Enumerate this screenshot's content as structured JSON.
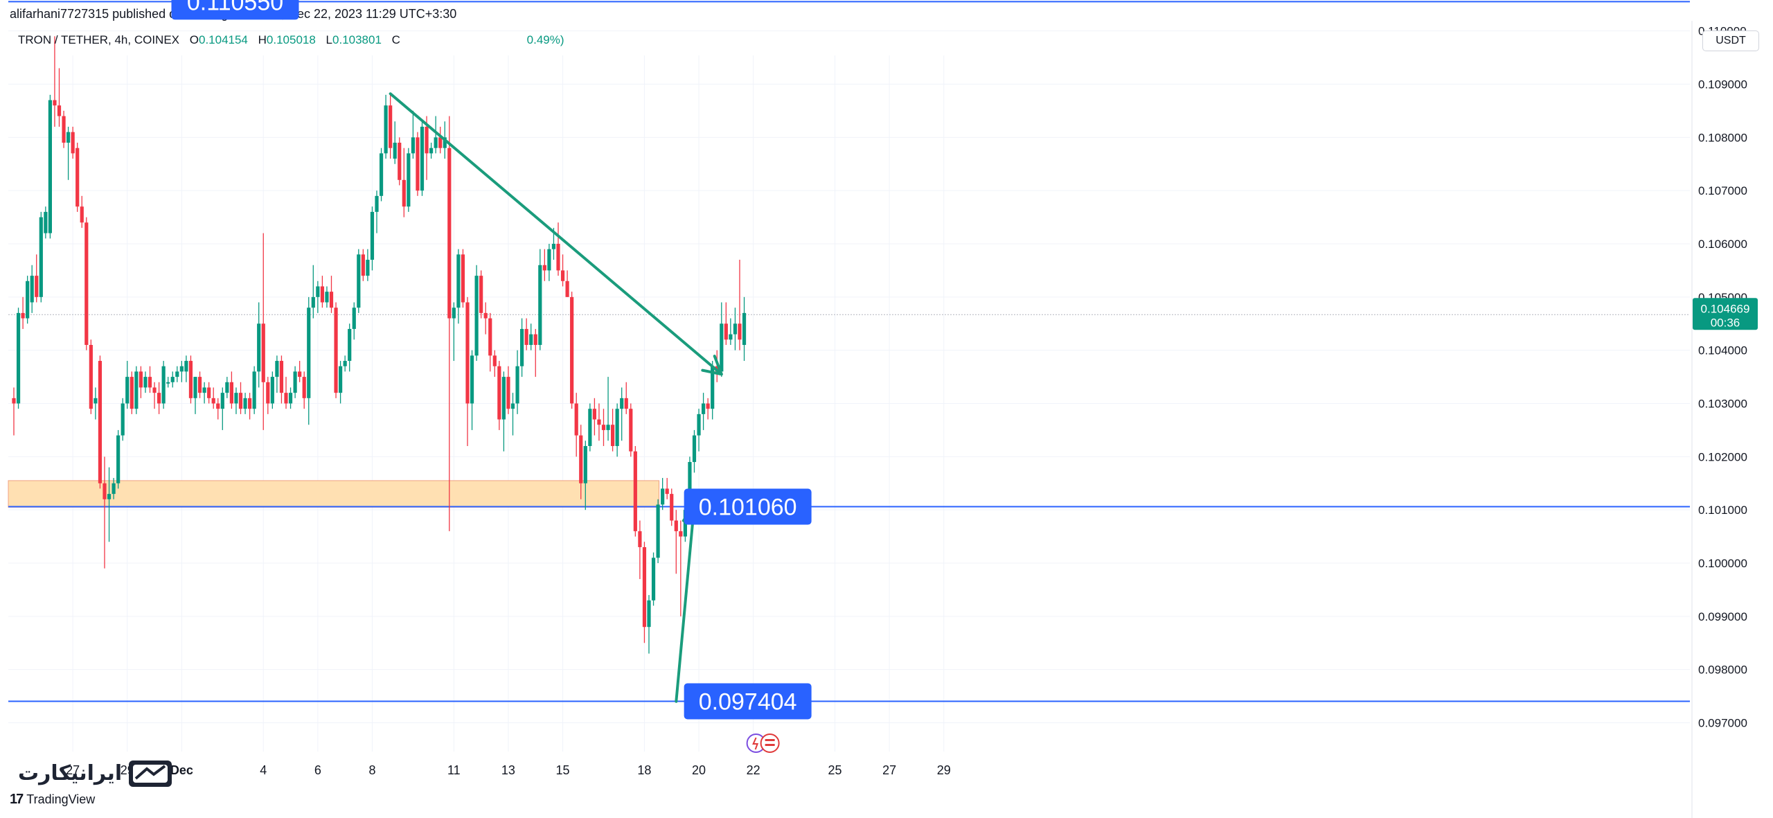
{
  "header": {
    "published_by": "alifarhani7727315 published on TradingView.com, Dec 22, 2023 11:29 UTC+3:30"
  },
  "legend": {
    "symbol": "TRON / TETHER, 4h, COINEX",
    "o_label": "O",
    "o_value": "0.104154",
    "h_label": "H",
    "h_value": "0.105018",
    "l_label": "L",
    "l_value": "0.103801",
    "c_label": "C",
    "change_visible": "0.49%)"
  },
  "currency_button": "USDT",
  "price_label": {
    "value": "0.104669",
    "countdown": "00:36"
  },
  "footer": {
    "brand": "TradingView",
    "watermark": "ایرانیکارت"
  },
  "colors": {
    "up": "#089981",
    "down": "#f23645",
    "trend": "#1a9c7c",
    "hline": "#2962ff",
    "callout": "#2962ff",
    "zone_fill": "#ffe0b2",
    "zone_border": "#f0a080",
    "grid": "#f0f3fa"
  },
  "chart_data": {
    "type": "candlestick",
    "timeframe": "4h",
    "ylim": [
      0.0965,
      0.1112
    ],
    "y_ticks": [
      "0.110000",
      "0.109000",
      "0.108000",
      "0.107000",
      "0.106000",
      "0.105000",
      "0.104000",
      "0.103000",
      "0.102000",
      "0.101000",
      "0.100000",
      "0.099000",
      "0.098000",
      "0.097000"
    ],
    "x_ticks": [
      {
        "label": "27",
        "i": 13
      },
      {
        "label": "29",
        "i": 25
      },
      {
        "label": "Dec",
        "i": 37
      },
      {
        "label": "4",
        "i": 55
      },
      {
        "label": "6",
        "i": 67
      },
      {
        "label": "8",
        "i": 79
      },
      {
        "label": "11",
        "i": 97
      },
      {
        "label": "13",
        "i": 109
      },
      {
        "label": "15",
        "i": 121
      },
      {
        "label": "18",
        "i": 139
      },
      {
        "label": "20",
        "i": 151
      },
      {
        "label": "22",
        "i": 163
      },
      {
        "label": "25",
        "i": 181
      },
      {
        "label": "27",
        "i": 193
      },
      {
        "label": "29",
        "i": 205
      }
    ],
    "candles": [
      [
        0.1031,
        0.1033,
        0.1024,
        0.103
      ],
      [
        0.103,
        0.1048,
        0.1029,
        0.1047
      ],
      [
        0.1047,
        0.105,
        0.1044,
        0.1046
      ],
      [
        0.1046,
        0.1054,
        0.1045,
        0.1053
      ],
      [
        0.1049,
        0.1056,
        0.1047,
        0.1054
      ],
      [
        0.1054,
        0.1058,
        0.1049,
        0.105
      ],
      [
        0.105,
        0.1066,
        0.1049,
        0.1065
      ],
      [
        0.1062,
        0.1067,
        0.1061,
        0.1066
      ],
      [
        0.1062,
        0.1088,
        0.1061,
        0.1087
      ],
      [
        0.1087,
        0.1099,
        0.1082,
        0.1086
      ],
      [
        0.1086,
        0.1093,
        0.1082,
        0.1084
      ],
      [
        0.1084,
        0.1085,
        0.1078,
        0.1079
      ],
      [
        0.1079,
        0.1082,
        0.1072,
        0.1081
      ],
      [
        0.1081,
        0.1082,
        0.1076,
        0.1077
      ],
      [
        0.1078,
        0.1079,
        0.1066,
        0.1067
      ],
      [
        0.1067,
        0.1069,
        0.1063,
        0.1064
      ],
      [
        0.1064,
        0.1065,
        0.104,
        0.1041
      ],
      [
        0.1041,
        0.1042,
        0.1028,
        0.1029
      ],
      [
        0.103,
        0.1033,
        0.1027,
        0.1031
      ],
      [
        0.1038,
        0.1039,
        0.1014,
        0.1015
      ],
      [
        0.1015,
        0.102,
        0.0999,
        0.1012
      ],
      [
        0.1012,
        0.1018,
        0.1004,
        0.1013
      ],
      [
        0.1013,
        0.1016,
        0.1012,
        0.1015
      ],
      [
        0.1015,
        0.1025,
        0.1014,
        0.1024
      ],
      [
        0.1024,
        0.1031,
        0.1023,
        0.103
      ],
      [
        0.103,
        0.1038,
        0.1029,
        0.1035
      ],
      [
        0.1035,
        0.1036,
        0.1028,
        0.1029
      ],
      [
        0.1029,
        0.1037,
        0.1028,
        0.1036
      ],
      [
        0.1036,
        0.1037,
        0.1031,
        0.1033
      ],
      [
        0.1033,
        0.1036,
        0.1032,
        0.1035
      ],
      [
        0.1035,
        0.1037,
        0.1032,
        0.1033
      ],
      [
        0.1033,
        0.1034,
        0.1029,
        0.1032
      ],
      [
        0.1032,
        0.1034,
        0.1028,
        0.103
      ],
      [
        0.103,
        0.1038,
        0.1029,
        0.1037
      ],
      [
        0.1034,
        0.1035,
        0.1033,
        0.1034
      ],
      [
        0.1034,
        0.1036,
        0.1033,
        0.1035
      ],
      [
        0.1035,
        0.1037,
        0.1034,
        0.1036
      ],
      [
        0.1036,
        0.1038,
        0.1034,
        0.1037
      ],
      [
        0.1036,
        0.1039,
        0.1034,
        0.1038
      ],
      [
        0.1038,
        0.1039,
        0.103,
        0.1031
      ],
      [
        0.1031,
        0.1035,
        0.1028,
        0.1035
      ],
      [
        0.1035,
        0.1036,
        0.1031,
        0.1032
      ],
      [
        0.1032,
        0.1034,
        0.103,
        0.1033
      ],
      [
        0.1033,
        0.1034,
        0.103,
        0.1031
      ],
      [
        0.1031,
        0.1033,
        0.1029,
        0.103
      ],
      [
        0.103,
        0.1031,
        0.1027,
        0.1029
      ],
      [
        0.1029,
        0.1033,
        0.1025,
        0.1032
      ],
      [
        0.1032,
        0.1035,
        0.1031,
        0.1034
      ],
      [
        0.1034,
        0.1036,
        0.1029,
        0.103
      ],
      [
        0.103,
        0.1033,
        0.1028,
        0.1032
      ],
      [
        0.1032,
        0.1034,
        0.1028,
        0.1029
      ],
      [
        0.1029,
        0.1032,
        0.1028,
        0.1031
      ],
      [
        0.1031,
        0.1032,
        0.1027,
        0.1029
      ],
      [
        0.1029,
        0.1037,
        0.1028,
        0.1036
      ],
      [
        0.1036,
        0.1049,
        0.1033,
        0.1045
      ],
      [
        0.1045,
        0.1062,
        0.1025,
        0.1034
      ],
      [
        0.1034,
        0.1035,
        0.1028,
        0.103
      ],
      [
        0.103,
        0.1036,
        0.1029,
        0.1035
      ],
      [
        0.1035,
        0.1039,
        0.1032,
        0.1038
      ],
      [
        0.1038,
        0.1039,
        0.103,
        0.1032
      ],
      [
        0.1032,
        0.1035,
        0.1029,
        0.103
      ],
      [
        0.103,
        0.1033,
        0.1029,
        0.1032
      ],
      [
        0.1032,
        0.1037,
        0.1031,
        0.1036
      ],
      [
        0.1036,
        0.1038,
        0.1034,
        0.1035
      ],
      [
        0.1035,
        0.1036,
        0.1029,
        0.1031
      ],
      [
        0.1031,
        0.105,
        0.1026,
        0.1048
      ],
      [
        0.1048,
        0.1056,
        0.1046,
        0.105
      ],
      [
        0.105,
        0.1053,
        0.1047,
        0.1052
      ],
      [
        0.1052,
        0.1054,
        0.1048,
        0.1049
      ],
      [
        0.1049,
        0.1052,
        0.1048,
        0.1051
      ],
      [
        0.1051,
        0.1054,
        0.1047,
        0.1048
      ],
      [
        0.1048,
        0.1049,
        0.1031,
        0.1032
      ],
      [
        0.1032,
        0.1038,
        0.103,
        0.1037
      ],
      [
        0.1037,
        0.1039,
        0.1036,
        0.1038
      ],
      [
        0.1038,
        0.1045,
        0.1036,
        0.1044
      ],
      [
        0.1044,
        0.1049,
        0.1042,
        0.1048
      ],
      [
        0.1048,
        0.1059,
        0.1047,
        0.1058
      ],
      [
        0.1058,
        0.1059,
        0.1053,
        0.1054
      ],
      [
        0.1054,
        0.1059,
        0.1053,
        0.1057
      ],
      [
        0.1057,
        0.1067,
        0.1055,
        0.1066
      ],
      [
        0.1066,
        0.107,
        0.1062,
        0.1069
      ],
      [
        0.1069,
        0.1078,
        0.1068,
        0.1077
      ],
      [
        0.1077,
        0.1088,
        0.1076,
        0.1086
      ],
      [
        0.1086,
        0.1088,
        0.1076,
        0.1078
      ],
      [
        0.1076,
        0.1083,
        0.1075,
        0.1079
      ],
      [
        0.1079,
        0.108,
        0.1071,
        0.1072
      ],
      [
        0.1072,
        0.1078,
        0.1065,
        0.1067
      ],
      [
        0.1067,
        0.1078,
        0.1066,
        0.1077
      ],
      [
        0.1077,
        0.1085,
        0.1076,
        0.108
      ],
      [
        0.108,
        0.1081,
        0.1069,
        0.107
      ],
      [
        0.107,
        0.1083,
        0.1069,
        0.1082
      ],
      [
        0.1082,
        0.1084,
        0.1072,
        0.1077
      ],
      [
        0.1077,
        0.1079,
        0.1076,
        0.1078
      ],
      [
        0.1078,
        0.1084,
        0.1077,
        0.108
      ],
      [
        0.108,
        0.1082,
        0.1077,
        0.1078
      ],
      [
        0.1078,
        0.1083,
        0.1076,
        0.108
      ],
      [
        0.1078,
        0.1084,
        0.1006,
        0.1046
      ],
      [
        0.1046,
        0.1049,
        0.1038,
        0.1048
      ],
      [
        0.1048,
        0.1059,
        0.1045,
        0.1058
      ],
      [
        0.1058,
        0.1059,
        0.1048,
        0.1049
      ],
      [
        0.1049,
        0.105,
        0.1022,
        0.103
      ],
      [
        0.103,
        0.104,
        0.1025,
        0.1039
      ],
      [
        0.1039,
        0.1056,
        0.1038,
        0.1054
      ],
      [
        0.1054,
        0.1055,
        0.1046,
        0.1047
      ],
      [
        0.1047,
        0.1049,
        0.1043,
        0.1046
      ],
      [
        0.1046,
        0.1047,
        0.1036,
        0.1039
      ],
      [
        0.1039,
        0.104,
        0.1035,
        0.1037
      ],
      [
        0.1037,
        0.1038,
        0.1025,
        0.1027
      ],
      [
        0.1027,
        0.1036,
        0.1021,
        0.1035
      ],
      [
        0.1035,
        0.1037,
        0.1028,
        0.1029
      ],
      [
        0.1029,
        0.1032,
        0.1024,
        0.103
      ],
      [
        0.103,
        0.104,
        0.1028,
        0.1037
      ],
      [
        0.1037,
        0.1046,
        0.1035,
        0.1044
      ],
      [
        0.1044,
        0.1046,
        0.104,
        0.1041
      ],
      [
        0.1041,
        0.1045,
        0.104,
        0.1043
      ],
      [
        0.1043,
        0.1044,
        0.1035,
        0.1041
      ],
      [
        0.1041,
        0.1059,
        0.104,
        0.1056
      ],
      [
        0.1056,
        0.1059,
        0.1053,
        0.1055
      ],
      [
        0.1055,
        0.106,
        0.1053,
        0.1059
      ],
      [
        0.1059,
        0.1063,
        0.1057,
        0.106
      ],
      [
        0.106,
        0.1064,
        0.1054,
        0.1055
      ],
      [
        0.1055,
        0.1058,
        0.1052,
        0.1053
      ],
      [
        0.1053,
        0.1055,
        0.105,
        0.105
      ],
      [
        0.105,
        0.1051,
        0.1029,
        0.103
      ],
      [
        0.103,
        0.1032,
        0.102,
        0.1024
      ],
      [
        0.1024,
        0.1026,
        0.1012,
        0.1015
      ],
      [
        0.1015,
        0.1023,
        0.101,
        0.1022
      ],
      [
        0.1022,
        0.103,
        0.1021,
        0.1029
      ],
      [
        0.1029,
        0.1031,
        0.1024,
        0.1027
      ],
      [
        0.1027,
        0.103,
        0.1023,
        0.1026
      ],
      [
        0.1026,
        0.1029,
        0.1022,
        0.1025
      ],
      [
        0.1025,
        0.1035,
        0.1023,
        0.1026
      ],
      [
        0.1026,
        0.1029,
        0.1021,
        0.1022
      ],
      [
        0.1022,
        0.103,
        0.102,
        0.1029
      ],
      [
        0.1029,
        0.1033,
        0.1023,
        0.1031
      ],
      [
        0.1031,
        0.1034,
        0.1028,
        0.1029
      ],
      [
        0.1029,
        0.103,
        0.102,
        0.1021
      ],
      [
        0.1021,
        0.1022,
        0.1005,
        0.1006
      ],
      [
        0.1006,
        0.1008,
        0.0997,
        0.1003
      ],
      [
        0.1003,
        0.1004,
        0.0985,
        0.0988
      ],
      [
        0.0988,
        0.0994,
        0.0983,
        0.0993
      ],
      [
        0.0993,
        0.1002,
        0.0992,
        0.1001
      ],
      [
        0.1001,
        0.1012,
        0.1,
        0.1011
      ],
      [
        0.1011,
        0.1016,
        0.101,
        0.1014
      ],
      [
        0.1014,
        0.1016,
        0.1012,
        0.1013
      ],
      [
        0.1013,
        0.1014,
        0.1007,
        0.1008
      ],
      [
        0.1008,
        0.101,
        0.0998,
        0.1006
      ],
      [
        0.1006,
        0.1008,
        0.099,
        0.1005
      ],
      [
        0.1005,
        0.1012,
        0.1004,
        0.101
      ],
      [
        0.101,
        0.102,
        0.1009,
        0.1019
      ],
      [
        0.1019,
        0.1025,
        0.1017,
        0.1024
      ],
      [
        0.1024,
        0.1029,
        0.1021,
        0.1028
      ],
      [
        0.1028,
        0.1032,
        0.1025,
        0.103
      ],
      [
        0.103,
        0.1031,
        0.1027,
        0.1029
      ],
      [
        0.1029,
        0.1038,
        0.1027,
        0.1037
      ],
      [
        0.1037,
        0.104,
        0.1034,
        0.1036
      ],
      [
        0.1036,
        0.1049,
        0.1035,
        0.1045
      ],
      [
        0.1045,
        0.1049,
        0.1041,
        0.1042
      ],
      [
        0.1042,
        0.1046,
        0.1041,
        0.1043
      ],
      [
        0.1043,
        0.1048,
        0.104,
        0.1045
      ],
      [
        0.1045,
        0.1057,
        0.104,
        0.1042
      ],
      [
        0.1041,
        0.105,
        0.1038,
        0.1047
      ]
    ],
    "support_zone": {
      "from": 0.10105,
      "to": 0.10155,
      "start_i": 0,
      "end_i": 141
    },
    "horizontal_lines": [
      {
        "value": 0.11055,
        "label": "0.110550",
        "label_i": 50
      },
      {
        "value": 0.10106,
        "label": "0.101060",
        "label_i": 163
      },
      {
        "value": 0.097404,
        "label": "0.097404",
        "label_i": 163
      }
    ],
    "trendlines": [
      {
        "from": [
          83,
          0.10882
        ],
        "to": [
          156,
          0.10355
        ],
        "arrow": true
      },
      {
        "from": [
          146,
          0.0974
        ],
        "to": [
          150,
          0.1011
        ],
        "arrow": true
      }
    ],
    "last_price_line": 0.104669
  }
}
